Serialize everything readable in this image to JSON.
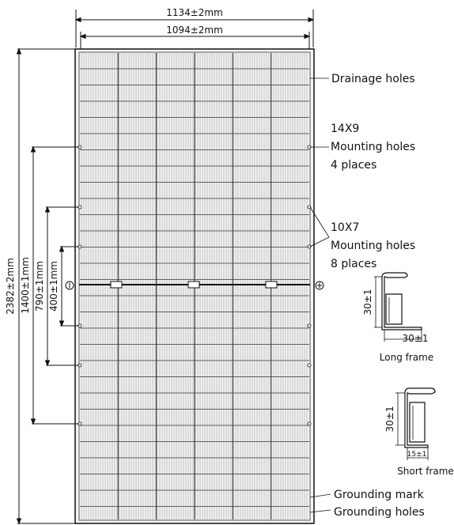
{
  "dimensions": {
    "overall_width": "1134±2mm",
    "inner_width": "1094±2mm",
    "overall_height": "2382±2mm",
    "mount_1400": "1400±1mm",
    "mount_790": "790±1mm",
    "mount_400": "400±1mm"
  },
  "panel": {
    "negative_symbol": "⊖",
    "positive_symbol": "⊕"
  },
  "callouts": {
    "drainage": "Drainage holes",
    "mount_14x9": [
      "14X9",
      "Mounting holes",
      "4 places"
    ],
    "mount_10x7": [
      "10X7",
      "Mounting holes",
      "8 places"
    ],
    "grounding_mark": "Grounding mark",
    "grounding_holes": "Grounding holes"
  },
  "long_frame": {
    "height_label": "30±1",
    "width_label": "30±1",
    "caption": "Long frame"
  },
  "short_frame": {
    "height_label": "30±1",
    "width_label": "15±1",
    "caption": "Short frame"
  },
  "colors": {
    "line": "#111111",
    "cell_line": "#555555",
    "panel_fill": "#f4f4f4"
  }
}
